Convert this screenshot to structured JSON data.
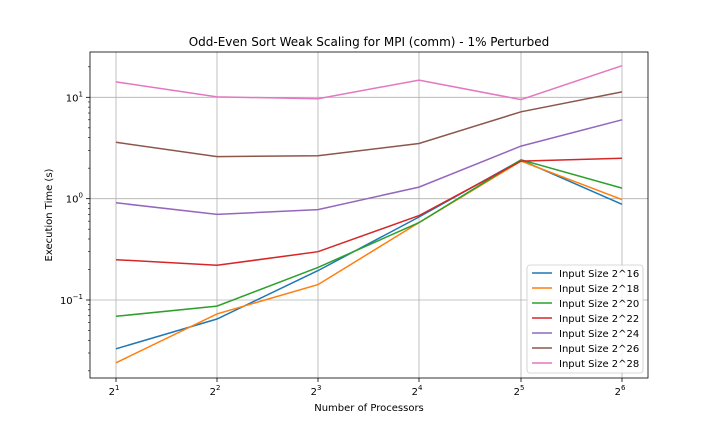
{
  "chart_data": {
    "type": "line",
    "title": "Odd-Even Sort Weak Scaling for MPI (comm) - 1% Perturbed",
    "xlabel": "Number of Processors",
    "ylabel": "Execution Time (s)",
    "x_scale": "log2",
    "y_scale": "log10",
    "x": [
      2,
      4,
      8,
      16,
      32,
      64
    ],
    "x_tick_labels": [
      {
        "base": "2",
        "exp": "1"
      },
      {
        "base": "2",
        "exp": "2"
      },
      {
        "base": "2",
        "exp": "3"
      },
      {
        "base": "2",
        "exp": "4"
      },
      {
        "base": "2",
        "exp": "5"
      },
      {
        "base": "2",
        "exp": "6"
      }
    ],
    "y_ticks": [
      {
        "value": 0.1,
        "base": "10",
        "exp": "−1"
      },
      {
        "value": 1,
        "base": "10",
        "exp": "0"
      },
      {
        "value": 10,
        "base": "10",
        "exp": "1"
      }
    ],
    "ylim": [
      0.017,
      28
    ],
    "grid": true,
    "legend_position": "lower-right",
    "series": [
      {
        "name": "Input Size 2^16",
        "color": "#1f77b4",
        "values": [
          0.033,
          0.065,
          0.195,
          0.66,
          2.4,
          0.88
        ]
      },
      {
        "name": "Input Size 2^18",
        "color": "#ff7f0e",
        "values": [
          0.024,
          0.073,
          0.142,
          0.58,
          2.35,
          0.98
        ]
      },
      {
        "name": "Input Size 2^20",
        "color": "#2ca02c",
        "values": [
          0.069,
          0.087,
          0.21,
          0.58,
          2.42,
          1.27
        ]
      },
      {
        "name": "Input Size 2^22",
        "color": "#d62728",
        "values": [
          0.25,
          0.22,
          0.3,
          0.68,
          2.35,
          2.5
        ]
      },
      {
        "name": "Input Size 2^24",
        "color": "#9467bd",
        "values": [
          0.91,
          0.7,
          0.78,
          1.3,
          3.3,
          6.0
        ]
      },
      {
        "name": "Input Size 2^26",
        "color": "#8c564b",
        "values": [
          3.6,
          2.6,
          2.65,
          3.5,
          7.2,
          11.3
        ]
      },
      {
        "name": "Input Size 2^28",
        "color": "#e377c2",
        "values": [
          14.2,
          10.1,
          9.7,
          14.8,
          9.5,
          20.5
        ]
      }
    ]
  }
}
